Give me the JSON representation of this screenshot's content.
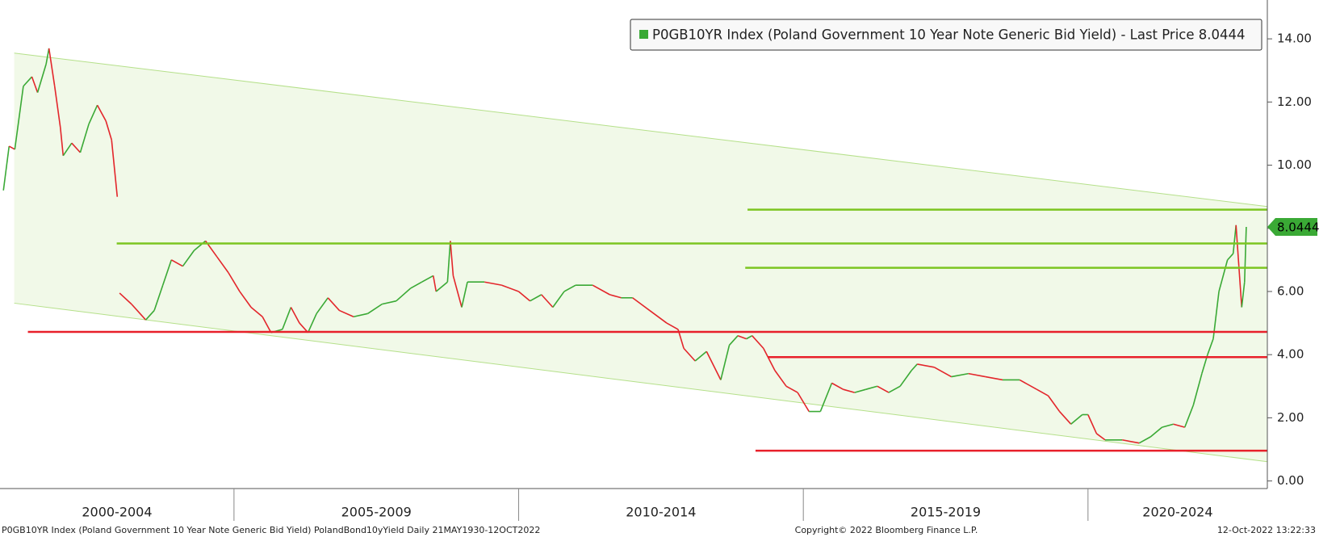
{
  "chart_data": {
    "type": "line",
    "legend_text": "P0GB10YR Index (Poland Government 10 Year Note Generic Bid Yield) - Last Price 8.0444",
    "footer_left": "P0GB10YR Index (Poland Government 10 Year Note Generic Bid Yield) PolandBond10yYield  Daily 21MAY1930-12OCT2022",
    "footer_center": "Copyright© 2022 Bloomberg Finance L.P.",
    "footer_right": "12-Oct-2022 13:22:33",
    "legend_corner": "top-right",
    "xlim": [
      2000.89,
      2023.15
    ],
    "ylim": [
      -0.24,
      15.23
    ],
    "yticks": [
      {
        "value": 0,
        "label": "0.00"
      },
      {
        "value": 2,
        "label": "2.00"
      },
      {
        "value": 4,
        "label": "4.00"
      },
      {
        "value": 6,
        "label": "6.00"
      },
      {
        "value": 8,
        "label": "8.00"
      },
      {
        "value": 10,
        "label": "10.00"
      },
      {
        "value": 12,
        "label": "12.00"
      },
      {
        "value": 14,
        "label": "14.00"
      }
    ],
    "x_periods": [
      {
        "start": 2000,
        "end": 2005,
        "label": "2000-2004"
      },
      {
        "start": 2005,
        "end": 2010,
        "label": "2005-2009"
      },
      {
        "start": 2010,
        "end": 2015,
        "label": "2010-2014"
      },
      {
        "start": 2015,
        "end": 2020,
        "label": "2015-2019"
      },
      {
        "start": 2020,
        "end": 2025,
        "label": "2020-2024"
      }
    ],
    "channel": {
      "x": [
        2001.14,
        2023.15
      ],
      "upper": [
        13.55,
        8.69
      ],
      "lower": [
        5.63,
        0.61
      ],
      "color": "#b5e08a",
      "fill": "#f1f9e8"
    },
    "hlines": [
      {
        "value": 8.59,
        "x": [
          2014.02,
          2023.15
        ],
        "color": "#7cc520"
      },
      {
        "value": 7.52,
        "x": [
          2002.94,
          2023.15
        ],
        "color": "#7cc520"
      },
      {
        "value": 6.75,
        "x": [
          2013.98,
          2023.15
        ],
        "color": "#7cc520"
      },
      {
        "value": 4.72,
        "x": [
          2001.38,
          2023.15
        ],
        "color": "#e8202a"
      },
      {
        "value": 3.92,
        "x": [
          2014.38,
          2023.15
        ],
        "color": "#e8202a"
      },
      {
        "value": 0.96,
        "x": [
          2014.16,
          2023.15
        ],
        "color": "#e8202a"
      }
    ],
    "series": [
      {
        "name": "P0GB10YR Index",
        "color": "#3aa935",
        "down_color": "#e3262b",
        "x": [
          2000.95,
          2001.05,
          2001.15,
          2001.3,
          2001.45,
          2001.55,
          2001.7,
          2001.75,
          2001.85,
          2001.95,
          2002.0,
          2002.15,
          2002.3,
          2002.45,
          2002.6,
          2002.75,
          2002.85,
          2002.95,
          2002.97,
          2002.99,
          2003.2,
          2003.45,
          2003.6,
          2003.75,
          2003.9,
          2004.1,
          2004.3,
          2004.5,
          2004.7,
          2004.9,
          2005.1,
          2005.3,
          2005.5,
          2005.65,
          2005.85,
          2006.0,
          2006.15,
          2006.3,
          2006.45,
          2006.65,
          2006.85,
          2007.1,
          2007.35,
          2007.6,
          2007.85,
          2008.1,
          2008.3,
          2008.5,
          2008.55,
          2008.75,
          2008.8,
          2008.85,
          2009.0,
          2009.1,
          2009.4,
          2009.7,
          2010.0,
          2010.2,
          2010.4,
          2010.6,
          2010.8,
          2011.0,
          2011.3,
          2011.6,
          2011.8,
          2012.0,
          2012.3,
          2012.6,
          2012.8,
          2012.9,
          2013.1,
          2013.3,
          2013.55,
          2013.7,
          2013.85,
          2014.0,
          2014.1,
          2014.3,
          2014.5,
          2014.7,
          2014.9,
          2015.1,
          2015.3,
          2015.5,
          2015.7,
          2015.9,
          2016.1,
          2016.3,
          2016.5,
          2016.7,
          2016.9,
          2017.0,
          2017.3,
          2017.6,
          2017.9,
          2018.2,
          2018.5,
          2018.8,
          2019.1,
          2019.3,
          2019.5,
          2019.7,
          2019.9,
          2020.0,
          2020.15,
          2020.3,
          2020.6,
          2020.9,
          2021.1,
          2021.3,
          2021.5,
          2021.7,
          2021.85,
          2022.0,
          2022.1,
          2022.2,
          2022.3,
          2022.45,
          2022.55,
          2022.6,
          2022.65,
          2022.7,
          2022.75,
          2022.78
        ],
        "values": [
          9.2,
          10.6,
          10.5,
          12.5,
          12.8,
          12.3,
          13.2,
          13.7,
          12.5,
          11.2,
          10.3,
          10.7,
          10.4,
          11.3,
          11.9,
          11.4,
          10.8,
          9.0,
          null,
          5.95,
          5.6,
          5.1,
          5.4,
          6.2,
          7.0,
          6.8,
          7.3,
          7.6,
          7.1,
          6.6,
          6.0,
          5.5,
          5.2,
          4.7,
          4.8,
          5.5,
          5.0,
          4.7,
          5.3,
          5.8,
          5.4,
          5.2,
          5.3,
          5.6,
          5.7,
          6.1,
          6.3,
          6.5,
          6.0,
          6.3,
          7.6,
          6.5,
          5.5,
          6.3,
          6.3,
          6.2,
          6.0,
          5.7,
          5.9,
          5.5,
          6.0,
          6.2,
          6.2,
          5.9,
          5.8,
          5.8,
          5.4,
          5.0,
          4.8,
          4.2,
          3.8,
          4.1,
          3.2,
          4.3,
          4.6,
          4.5,
          4.6,
          4.2,
          3.5,
          3.0,
          2.8,
          2.2,
          2.2,
          3.1,
          2.9,
          2.8,
          2.9,
          3.0,
          2.8,
          3.0,
          3.5,
          3.7,
          3.6,
          3.3,
          3.4,
          3.3,
          3.2,
          3.2,
          2.9,
          2.7,
          2.2,
          1.8,
          2.1,
          2.1,
          1.5,
          1.3,
          1.3,
          1.2,
          1.4,
          1.7,
          1.8,
          1.7,
          2.4,
          3.4,
          4.0,
          4.5,
          6.0,
          7.0,
          7.2,
          8.1,
          6.8,
          5.5,
          6.3,
          8.0444
        ]
      }
    ]
  }
}
